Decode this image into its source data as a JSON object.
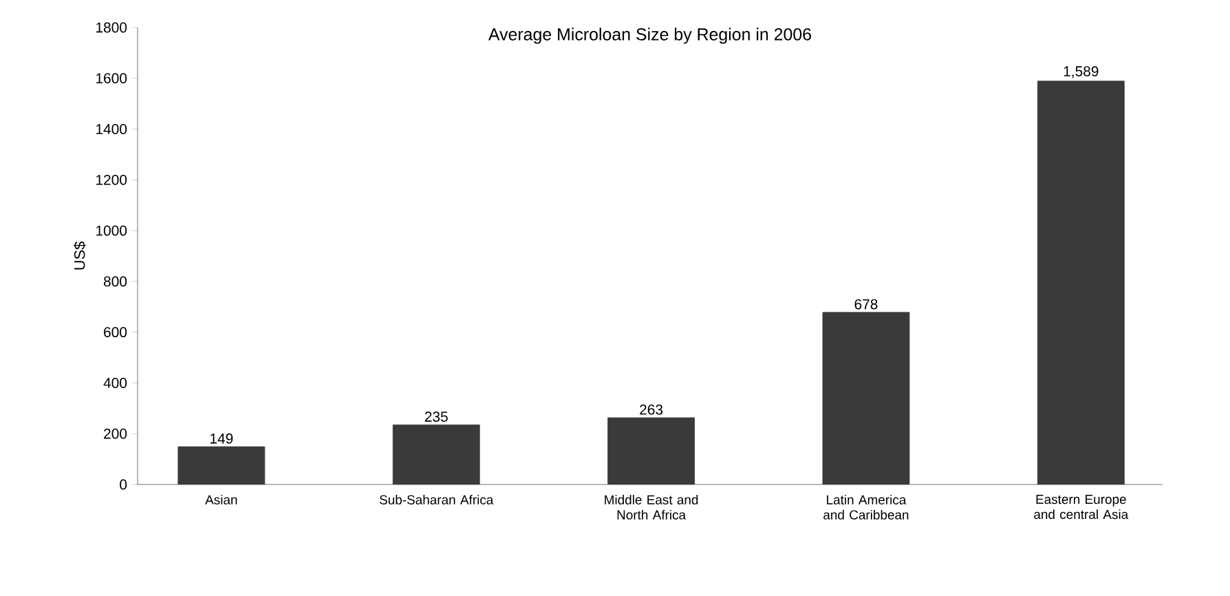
{
  "chart_data": {
    "type": "bar",
    "title": "Average Microloan Size by Region in 2006",
    "ylabel": "US$",
    "categories": [
      "Asian",
      "Sub-Saharan Africa",
      "Middle East and North Africa",
      "Latin America and Caribbean",
      "Eastern Europe and central Asia"
    ],
    "values": [
      149,
      235,
      263,
      678,
      1589
    ],
    "value_labels": [
      "149",
      "235",
      "263",
      "678",
      "1,589"
    ],
    "color": "#3a3a3a",
    "ylim": [
      0,
      1800
    ],
    "yticks": [
      0,
      200,
      400,
      600,
      800,
      1000,
      1200,
      1400,
      1600,
      1800
    ],
    "grid": false
  }
}
